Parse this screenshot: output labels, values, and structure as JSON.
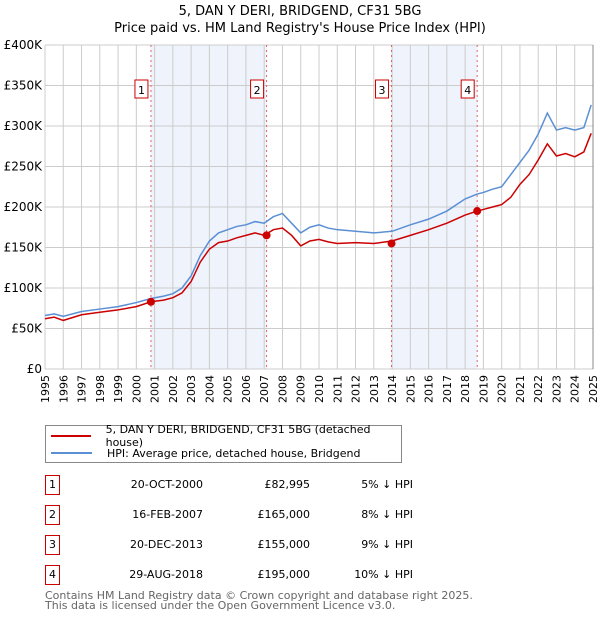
{
  "chart_data": {
    "type": "line",
    "title": "5, DAN Y DERI, BRIDGEND, CF31 5BG",
    "subtitle": "Price paid vs. HM Land Registry's House Price Index (HPI)",
    "xlim": [
      1995,
      2025
    ],
    "ylim": [
      0,
      400000
    ],
    "x_ticks": [
      "1995",
      "1996",
      "1997",
      "1998",
      "1999",
      "2000",
      "2001",
      "2002",
      "2003",
      "2004",
      "2005",
      "2006",
      "2007",
      "2008",
      "2009",
      "2010",
      "2011",
      "2012",
      "2013",
      "2014",
      "2015",
      "2016",
      "2017",
      "2018",
      "2019",
      "2020",
      "2021",
      "2022",
      "2023",
      "2024",
      "2025"
    ],
    "y_ticks": [
      {
        "v": 0,
        "label": "£0"
      },
      {
        "v": 50000,
        "label": "£50K"
      },
      {
        "v": 100000,
        "label": "£100K"
      },
      {
        "v": 150000,
        "label": "£150K"
      },
      {
        "v": 200000,
        "label": "£200K"
      },
      {
        "v": 250000,
        "label": "£250K"
      },
      {
        "v": 300000,
        "label": "£300K"
      },
      {
        "v": 350000,
        "label": "£350K"
      },
      {
        "v": 400000,
        "label": "£400K"
      }
    ],
    "grid": true,
    "x": [
      1995,
      1995.5,
      1996,
      1997,
      1998,
      1999,
      2000,
      2000.8,
      2001.5,
      2002,
      2002.5,
      2003,
      2003.5,
      2004,
      2004.5,
      2005,
      2005.5,
      2006,
      2006.5,
      2007,
      2007.5,
      2008,
      2008.5,
      2009,
      2009.5,
      2010,
      2010.5,
      2011,
      2012,
      2013,
      2014,
      2015,
      2016,
      2017,
      2018,
      2018.66,
      2019,
      2019.5,
      2020,
      2020.5,
      2021,
      2021.5,
      2022,
      2022.5,
      2023,
      2023.5,
      2024,
      2024.5,
      2024.9
    ],
    "series": [
      {
        "name": "5, DAN Y DERI, BRIDGEND, CF31 5BG (detached house)",
        "color": "#cc0000",
        "values": [
          62000,
          64000,
          60000,
          67000,
          70000,
          73000,
          77000,
          83000,
          85000,
          88000,
          94000,
          108000,
          132000,
          148000,
          156000,
          158000,
          162000,
          165000,
          168000,
          165000,
          172000,
          174000,
          165000,
          152000,
          158000,
          160000,
          157000,
          155000,
          156000,
          155000,
          158000,
          165000,
          172000,
          180000,
          190000,
          195000,
          197000,
          200000,
          203000,
          212000,
          228000,
          240000,
          258000,
          278000,
          263000,
          266000,
          262000,
          268000,
          291000
        ]
      },
      {
        "name": "HPI: Average price, detached house, Bridgend",
        "color": "#5b8fd4",
        "values": [
          66000,
          68000,
          65000,
          71000,
          74000,
          77000,
          82000,
          87000,
          90000,
          93000,
          100000,
          115000,
          140000,
          158000,
          168000,
          172000,
          176000,
          178000,
          182000,
          180000,
          188000,
          192000,
          180000,
          168000,
          175000,
          178000,
          174000,
          172000,
          170000,
          168000,
          170000,
          178000,
          185000,
          195000,
          210000,
          216000,
          218000,
          222000,
          225000,
          240000,
          255000,
          270000,
          290000,
          316000,
          295000,
          298000,
          295000,
          298000,
          326000
        ]
      }
    ],
    "shaded_region": [
      2000.8,
      2007.13
    ],
    "shaded_region_2": [
      2013.97,
      2018.66
    ],
    "sales": [
      {
        "id": "1",
        "x": 2000.8,
        "date": "20-OCT-2000",
        "price": 82995,
        "price_label": "£82,995",
        "hpi": "5% ↓ HPI"
      },
      {
        "id": "2",
        "x": 2007.13,
        "date": "16-FEB-2007",
        "price": 165000,
        "price_label": "£165,000",
        "hpi": "8% ↓ HPI"
      },
      {
        "id": "3",
        "x": 2013.97,
        "date": "20-DEC-2013",
        "price": 155000,
        "price_label": "£155,000",
        "hpi": "9% ↓ HPI"
      },
      {
        "id": "4",
        "x": 2018.66,
        "date": "29-AUG-2018",
        "price": 195000,
        "price_label": "£195,000",
        "hpi": "10% ↓ HPI"
      }
    ],
    "legend_placement": "bottom"
  },
  "footer": [
    "Contains HM Land Registry data © Crown copyright and database right 2025.",
    "This data is licensed under the Open Government Licence v3.0."
  ]
}
